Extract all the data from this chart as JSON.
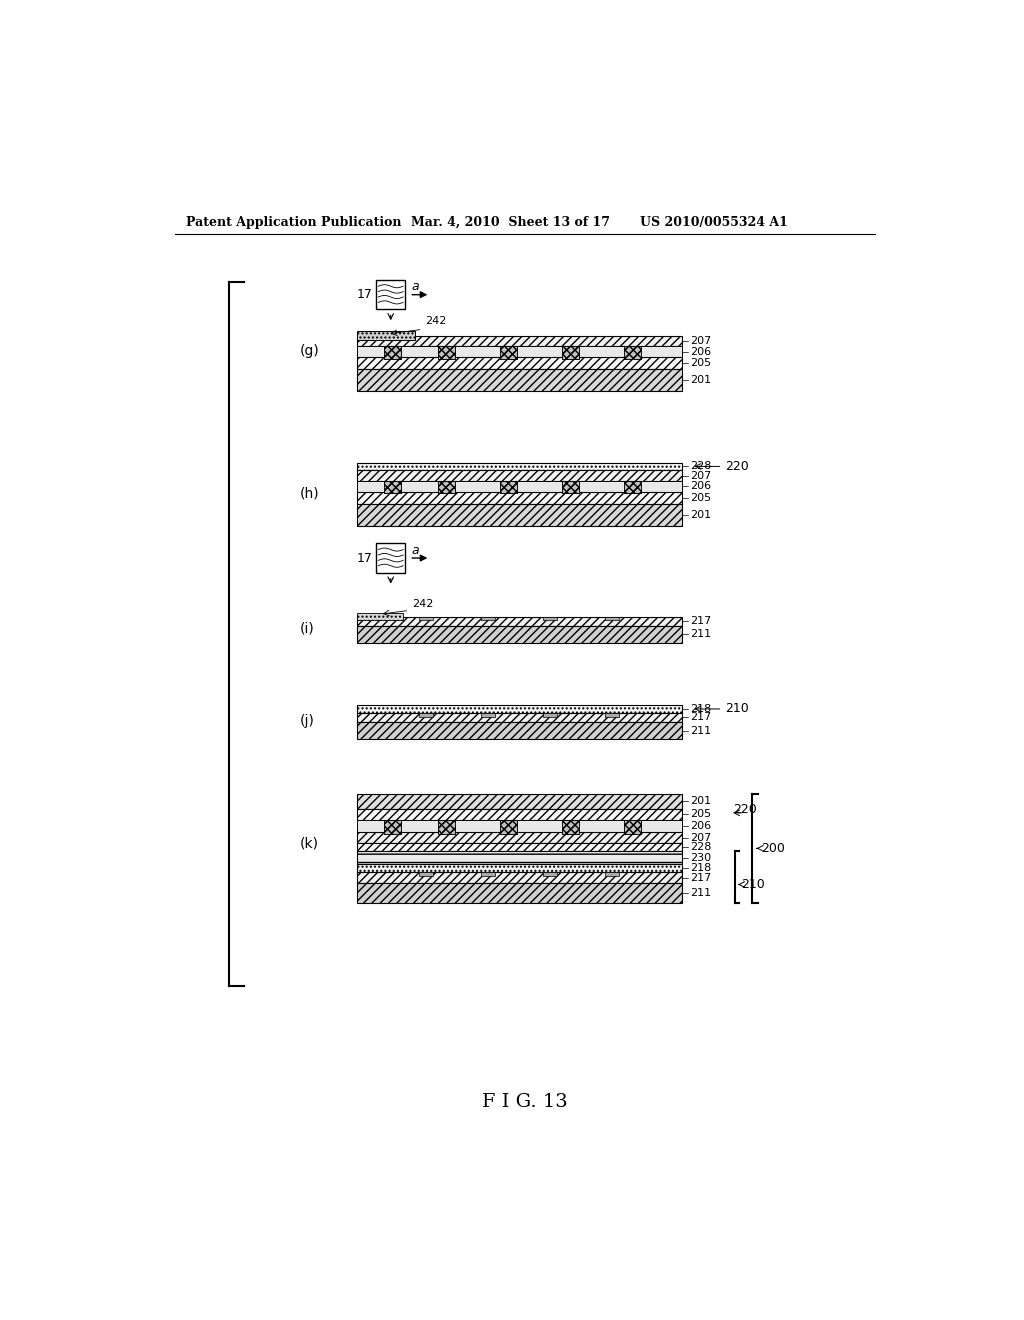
{
  "title_left": "Patent Application Publication",
  "title_mid": "Mar. 4, 2010  Sheet 13 of 17",
  "title_right": "US 2010/0055324 A1",
  "fig_label": "F I G. 13",
  "bg_color": "#ffffff",
  "line_color": "#000000"
}
